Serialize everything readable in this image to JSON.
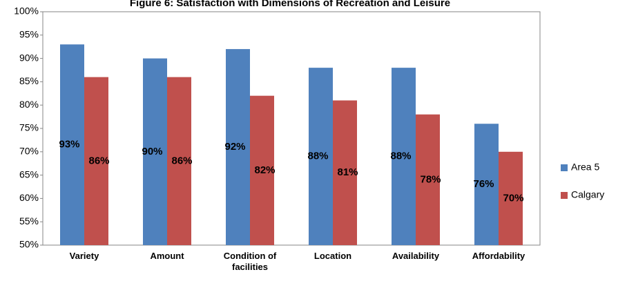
{
  "chart_data": {
    "type": "bar",
    "title": "Figure 6: Satisfaction with Dimensions of Recreation and Leisure",
    "categories": [
      "Variety",
      "Amount",
      "Condition of facilities",
      "Location",
      "Availability",
      "Affordability"
    ],
    "series": [
      {
        "name": "Area 5",
        "color": "#4f81bd",
        "values": [
          93,
          90,
          92,
          88,
          88,
          76
        ],
        "value_labels": [
          "93%",
          "90%",
          "92%",
          "88%",
          "88%",
          "76%"
        ]
      },
      {
        "name": "Calgary",
        "color": "#c0504d",
        "values": [
          86,
          86,
          82,
          81,
          78,
          70
        ],
        "value_labels": [
          "86%",
          "86%",
          "82%",
          "81%",
          "78%",
          "70%"
        ]
      }
    ],
    "ylim": [
      50,
      100
    ],
    "yticks": [
      {
        "value": 50,
        "label": "50%"
      },
      {
        "value": 55,
        "label": "55%"
      },
      {
        "value": 60,
        "label": "60%"
      },
      {
        "value": 65,
        "label": "65%"
      },
      {
        "value": 70,
        "label": "70%"
      },
      {
        "value": 75,
        "label": "75%"
      },
      {
        "value": 80,
        "label": "80%"
      },
      {
        "value": 85,
        "label": "85%"
      },
      {
        "value": 90,
        "label": "90%"
      },
      {
        "value": 95,
        "label": "95%"
      },
      {
        "value": 100,
        "label": "100%"
      }
    ],
    "grid": false,
    "legend": "right"
  }
}
